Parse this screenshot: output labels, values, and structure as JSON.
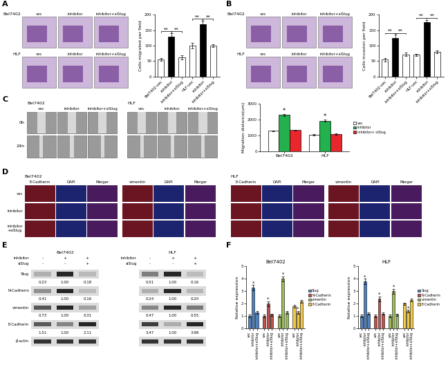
{
  "chart_data": [
    {
      "type": "bar",
      "ylabel": "Cells migrated per field",
      "categories": [
        "Bel7402-vec",
        "inhibitor",
        "inhibitor+siSlug",
        "HLF-vec",
        "inhibitor",
        "inhibitor+siSlug"
      ],
      "values": [
        55,
        130,
        62,
        100,
        170,
        100
      ],
      "errors": [
        5,
        10,
        6,
        8,
        10,
        4
      ],
      "colors": [
        "#ffffff",
        "#000000",
        "#ffffff",
        "#ffffff",
        "#000000",
        "#ffffff"
      ],
      "ylim": [
        0,
        200
      ],
      "yticks": [
        0,
        50,
        100,
        150,
        200
      ],
      "significance": [
        {
          "pair": [
            0,
            1
          ],
          "label": "**"
        },
        {
          "pair": [
            1,
            2
          ],
          "label": "**"
        },
        {
          "pair": [
            3,
            4
          ],
          "label": "**"
        },
        {
          "pair": [
            4,
            5
          ],
          "label": "**"
        }
      ]
    },
    {
      "type": "bar",
      "ylabel": "Cells invasion per field",
      "categories": [
        "Bel7402-vec",
        "inhibitor",
        "inhibitor+siSlug",
        "HLF-vec",
        "inhibitor",
        "inhibitor+siSlug"
      ],
      "values": [
        55,
        125,
        72,
        70,
        175,
        80
      ],
      "errors": [
        6,
        10,
        5,
        4,
        8,
        4
      ],
      "colors": [
        "#ffffff",
        "#000000",
        "#ffffff",
        "#ffffff",
        "#000000",
        "#ffffff"
      ],
      "ylim": [
        0,
        200
      ],
      "yticks": [
        0,
        50,
        100,
        150,
        200
      ],
      "significance": [
        {
          "pair": [
            0,
            1
          ],
          "label": "**"
        },
        {
          "pair": [
            1,
            2
          ],
          "label": "**"
        },
        {
          "pair": [
            3,
            4
          ],
          "label": "**"
        },
        {
          "pair": [
            4,
            5
          ],
          "label": "**"
        }
      ]
    },
    {
      "type": "grouped",
      "ylabel": "Migration distance(um)",
      "categories": [
        "Bel7402",
        "HLF"
      ],
      "series": [
        {
          "name": "vec",
          "color": "#ffffff",
          "values": [
            1300,
            1050
          ],
          "errors": [
            30,
            30
          ]
        },
        {
          "name": "inhibitor",
          "color": "#22b14c",
          "values": [
            2300,
            1950
          ],
          "errors": [
            60,
            80
          ]
        },
        {
          "name": "inhibitor+ siSlug",
          "color": "#e8262b",
          "values": [
            1350,
            1100
          ],
          "errors": [
            30,
            30
          ]
        }
      ],
      "ylim": [
        0,
        3000
      ],
      "yticks": [
        0,
        1000,
        2000,
        3000
      ],
      "legend": "right",
      "star": {
        "series": "inhibitor",
        "label": "*"
      }
    },
    {
      "type": "clustered",
      "title": "Bel7402",
      "ylabel": "Relative expression",
      "categories": [
        "vec",
        "inhibitor",
        "inhibitor+siSlug"
      ],
      "series": [
        {
          "name": "Slug",
          "color": "#4f81bd",
          "values": [
            1.0,
            3.3,
            1.3
          ],
          "errors": [
            0.1,
            0.2,
            0.1
          ]
        },
        {
          "name": "N-Cadherin",
          "color": "#c0504d",
          "values": [
            1.0,
            2.0,
            1.1
          ],
          "errors": [
            0.1,
            0.2,
            0.1
          ]
        },
        {
          "name": "vimentin",
          "color": "#9bbb59",
          "values": [
            1.0,
            4.0,
            1.3
          ],
          "errors": [
            0.1,
            0.2,
            0.1
          ]
        },
        {
          "name": "E-Cadherin",
          "color": "#f2c744",
          "values": [
            1.8,
            1.3,
            2.2
          ],
          "errors": [
            0.1,
            0.1,
            0.1
          ]
        }
      ],
      "ylim": [
        0,
        5
      ],
      "yticks": [
        0,
        1,
        2,
        3,
        4,
        5
      ],
      "legend": "right",
      "star": {
        "category": "inhibitor",
        "label": "*"
      }
    },
    {
      "type": "clustered",
      "title": "HLF",
      "ylabel": "Relative expression",
      "categories": [
        "vec",
        "inhibitor",
        "inhibitor+siSlug"
      ],
      "series": [
        {
          "name": "Slug",
          "color": "#4f81bd",
          "values": [
            1.0,
            3.8,
            1.2
          ],
          "errors": [
            0.1,
            0.2,
            0.1
          ]
        },
        {
          "name": "N-Cadherin",
          "color": "#c0504d",
          "values": [
            1.0,
            2.4,
            1.2
          ],
          "errors": [
            0.1,
            0.2,
            0.1
          ]
        },
        {
          "name": "vimentin",
          "color": "#9bbb59",
          "values": [
            1.0,
            3.0,
            1.1
          ],
          "errors": [
            0.1,
            0.2,
            0.1
          ]
        },
        {
          "name": "E-Cadherin",
          "color": "#f2c744",
          "values": [
            2.0,
            1.4,
            2.3
          ],
          "errors": [
            0.1,
            0.1,
            0.1
          ]
        }
      ],
      "ylim": [
        0,
        5
      ],
      "yticks": [
        0,
        1,
        2,
        3,
        4,
        5
      ],
      "legend": "right",
      "star": {
        "category": "inhibitor",
        "label": "*"
      }
    }
  ],
  "panels": {
    "A": {
      "label": "A",
      "cell_lines": [
        "Bel7402",
        "HLF"
      ],
      "conditions": [
        "vec",
        "inhibitor",
        "inhibitor+siSlug"
      ]
    },
    "B": {
      "label": "B",
      "cell_lines": [
        "Bel7402",
        "HLF"
      ],
      "conditions": [
        "vec",
        "inhibitor",
        "inhibitor+siSlug"
      ]
    },
    "C": {
      "label": "C",
      "cell_lines": [
        "Bel7402",
        "HLF"
      ],
      "conditions": [
        "vec",
        "inhibitor",
        "inhibitor+siSlug"
      ],
      "times": [
        "0h",
        "24h"
      ]
    },
    "D": {
      "label": "D",
      "cell_lines": [
        "Bel7402",
        "HLF"
      ],
      "stains": [
        [
          "E-Cadherin",
          "DAPI",
          "Merger"
        ],
        [
          "vimentin",
          "DAPI",
          "Merger"
        ]
      ],
      "conditions": [
        "vec",
        "inhibitor",
        "inhibitor\n+siSlug"
      ]
    },
    "E": {
      "label": "E",
      "treatments": [
        {
          "name": "inhibitor",
          "signs": [
            "-",
            "+",
            "+"
          ]
        },
        {
          "name": "siSlug",
          "signs": [
            "-",
            "-",
            "+"
          ]
        }
      ],
      "blots": [
        {
          "cell_line": "Bel7402",
          "proteins": [
            {
              "name": "Slug",
              "values": [
                0.23,
                1.0,
                0.18
              ],
              "value_labels": [
                "0.23",
                "1.00",
                "0.18"
              ]
            },
            {
              "name": "N-Cadherin",
              "values": [
                0.41,
                1.0,
                0.16
              ],
              "value_labels": [
                "0.41",
                "1.00",
                "0.16"
              ]
            },
            {
              "name": "vimentin",
              "values": [
                0.73,
                1.0,
                0.31
              ],
              "value_labels": [
                "0.73",
                "1.00",
                "0.31"
              ]
            },
            {
              "name": "E-Cadherin",
              "values": [
                1.51,
                1.0,
                2.11
              ],
              "value_labels": [
                "1.51",
                "1.00",
                "2.11"
              ]
            },
            {
              "name": "β-actin"
            }
          ]
        },
        {
          "cell_line": "HLF",
          "proteins": [
            {
              "name": "Slug",
              "values": [
                0.51,
                1.0,
                0.16
              ],
              "value_labels": [
                "0.51",
                "1.00",
                "0.16"
              ]
            },
            {
              "name": "N-Cadherin",
              "values": [
                0.24,
                1.0,
                0.2
              ],
              "value_labels": [
                "0.24",
                "1.00",
                "0.20"
              ]
            },
            {
              "name": "vimentin",
              "values": [
                0.47,
                1.0,
                0.55
              ],
              "value_labels": [
                "0.47",
                "1.00",
                "0.55"
              ]
            },
            {
              "name": "E-Cadherin",
              "values": [
                3.47,
                1.0,
                3.98
              ],
              "value_labels": [
                "3.47",
                "1.00",
                "3.98"
              ]
            },
            {
              "name": "β-actin"
            }
          ]
        }
      ]
    },
    "F": {
      "label": "F"
    }
  }
}
